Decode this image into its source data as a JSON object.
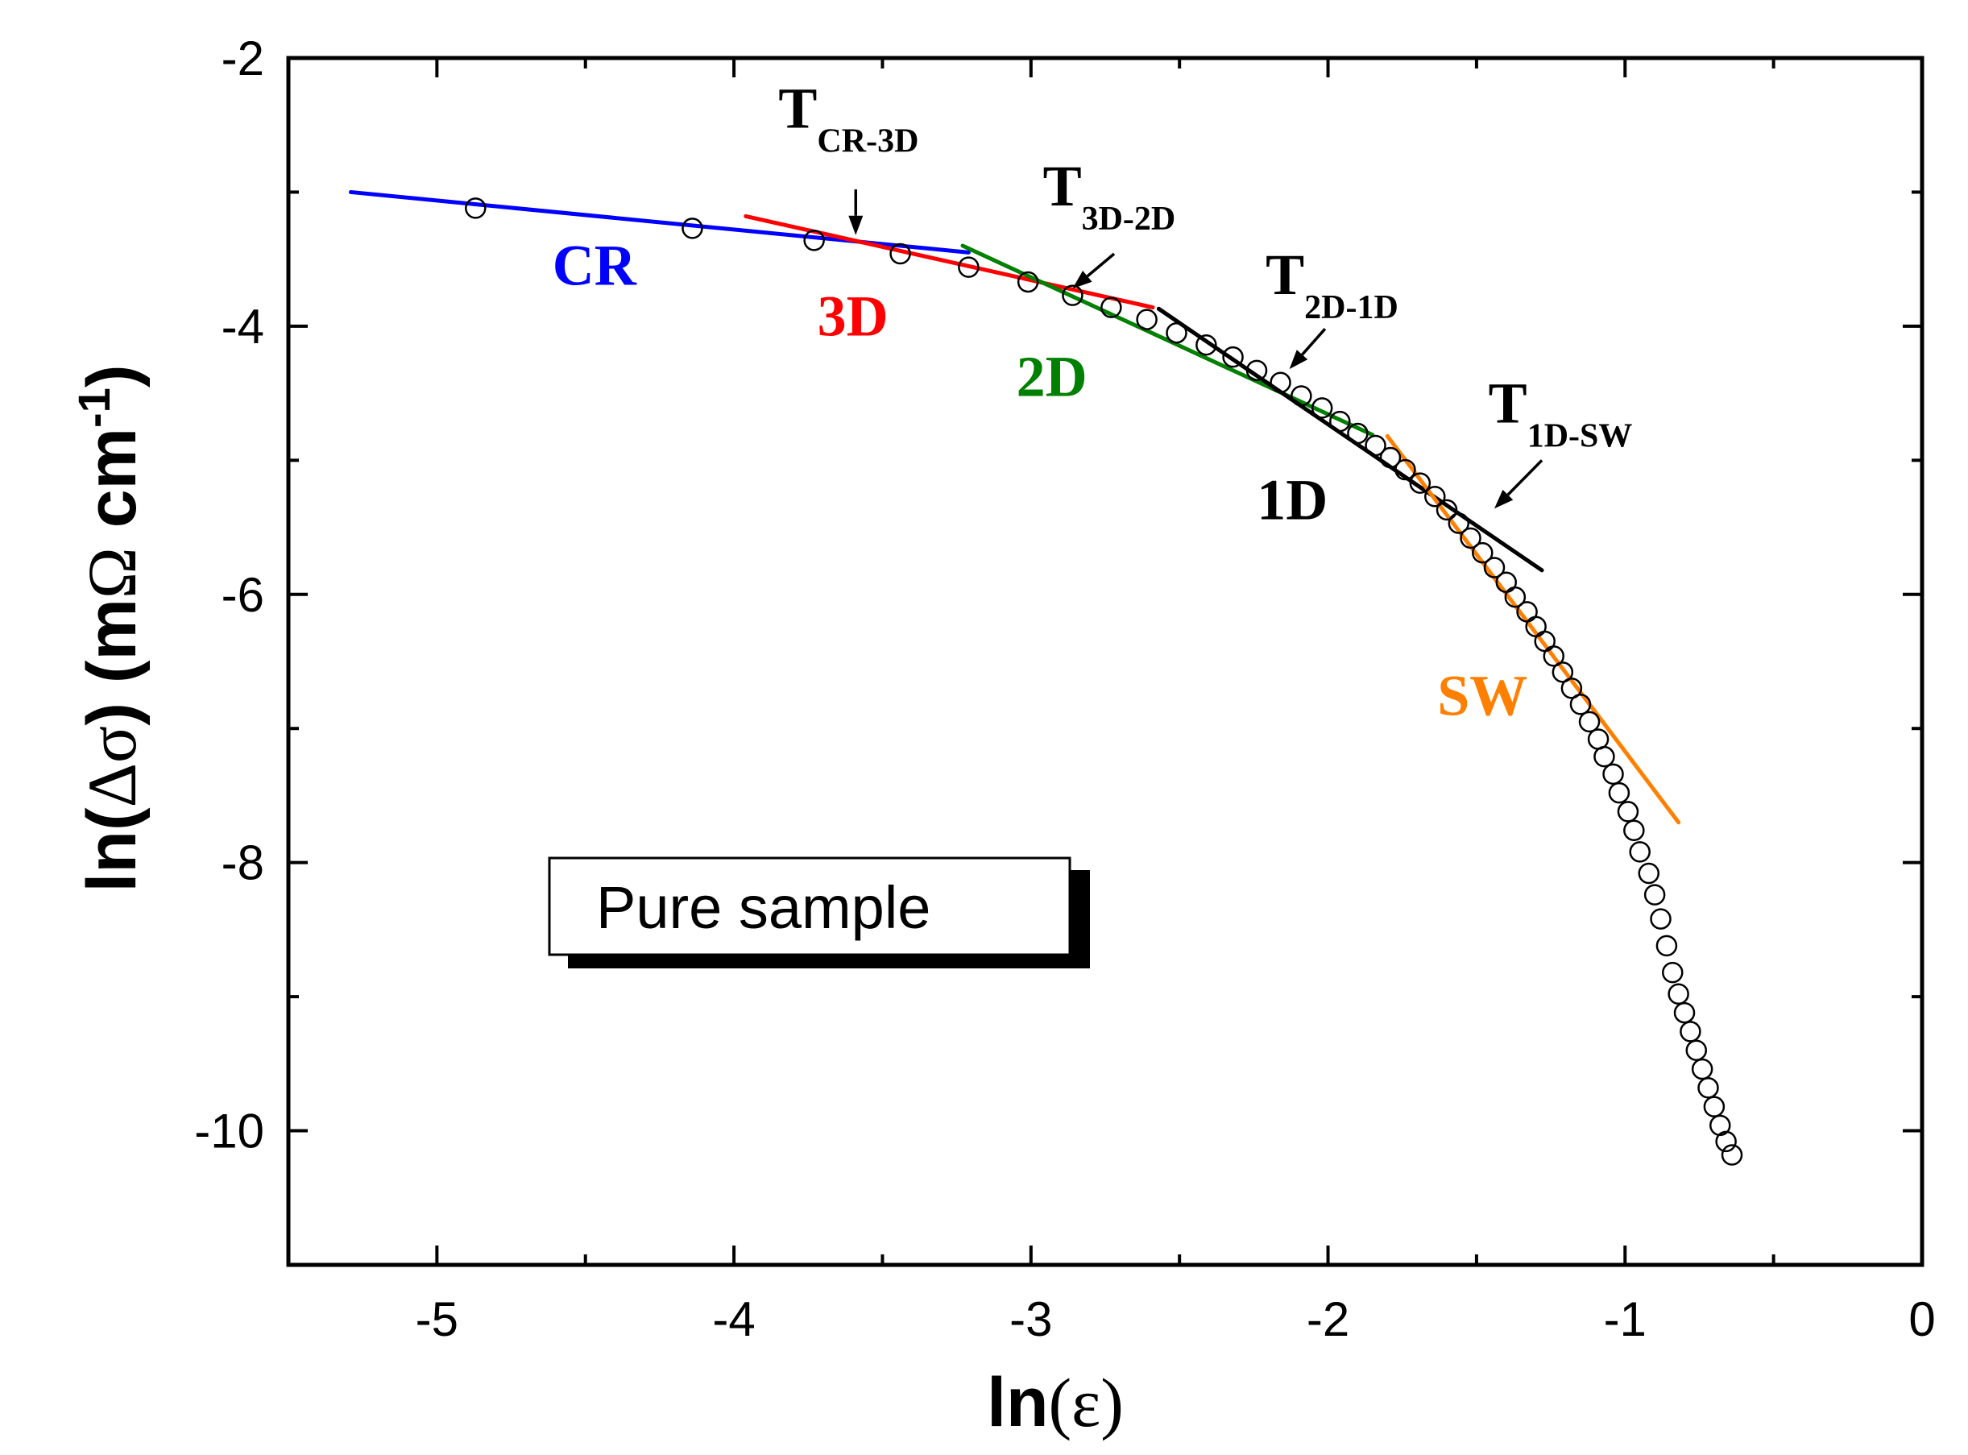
{
  "chart_data": {
    "type": "scatter",
    "title": "",
    "xlabel": {
      "prefix": "ln",
      "symbol": "(ε)"
    },
    "ylabel": {
      "prefix": "ln(",
      "symbol": "Δσ",
      "suffix": ")  (m",
      "omega": "Ω",
      "unit": " cm",
      "exp": "-1",
      "close": ")"
    },
    "xlim": [
      -5.5,
      0
    ],
    "ylim": [
      -11,
      -2
    ],
    "x_ticks": [
      -5,
      -4,
      -3,
      -2,
      -1,
      0
    ],
    "x_tick_labels": [
      "-5",
      "-4",
      "-3",
      "-2",
      "-1",
      "0"
    ],
    "y_ticks": [
      -2,
      -4,
      -6,
      -8,
      -10
    ],
    "y_tick_labels": [
      "-2",
      "-4",
      "-6",
      "-8",
      "-10"
    ],
    "x_minor_ticks": [
      -5.5,
      -4.5,
      -3.5,
      -2.5,
      -1.5,
      -0.5
    ],
    "y_minor_ticks": [
      -3,
      -5,
      -7,
      -9,
      -11
    ],
    "grid": false,
    "legend": {
      "text": "Pure sample",
      "position": "bottom-left",
      "marker": "open-circle"
    },
    "series": [
      {
        "name": "Pure sample",
        "marker": "open-circle",
        "points": [
          [
            -4.87,
            -3.12
          ],
          [
            -4.14,
            -3.27
          ],
          [
            -3.73,
            -3.36
          ],
          [
            -3.44,
            -3.46
          ],
          [
            -3.21,
            -3.56
          ],
          [
            -3.01,
            -3.67
          ],
          [
            -2.86,
            -3.77
          ],
          [
            -2.73,
            -3.86
          ],
          [
            -2.61,
            -3.95
          ],
          [
            -2.51,
            -4.05
          ],
          [
            -2.41,
            -4.14
          ],
          [
            -2.32,
            -4.23
          ],
          [
            -2.24,
            -4.33
          ],
          [
            -2.16,
            -4.42
          ],
          [
            -2.09,
            -4.52
          ],
          [
            -2.02,
            -4.61
          ],
          [
            -1.96,
            -4.71
          ],
          [
            -1.9,
            -4.8
          ],
          [
            -1.84,
            -4.89
          ],
          [
            -1.79,
            -4.98
          ],
          [
            -1.74,
            -5.07
          ],
          [
            -1.69,
            -5.17
          ],
          [
            -1.64,
            -5.27
          ],
          [
            -1.6,
            -5.37
          ],
          [
            -1.56,
            -5.47
          ],
          [
            -1.52,
            -5.58
          ],
          [
            -1.48,
            -5.69
          ],
          [
            -1.44,
            -5.8
          ],
          [
            -1.4,
            -5.91
          ],
          [
            -1.37,
            -6.02
          ],
          [
            -1.33,
            -6.13
          ],
          [
            -1.3,
            -6.24
          ],
          [
            -1.27,
            -6.35
          ],
          [
            -1.24,
            -6.46
          ],
          [
            -1.21,
            -6.58
          ],
          [
            -1.18,
            -6.7
          ],
          [
            -1.15,
            -6.82
          ],
          [
            -1.12,
            -6.95
          ],
          [
            -1.09,
            -7.08
          ],
          [
            -1.07,
            -7.21
          ],
          [
            -1.04,
            -7.34
          ],
          [
            -1.02,
            -7.48
          ],
          [
            -0.99,
            -7.62
          ],
          [
            -0.97,
            -7.76
          ],
          [
            -0.95,
            -7.92
          ],
          [
            -0.92,
            -8.08
          ],
          [
            -0.9,
            -8.24
          ],
          [
            -0.88,
            -8.42
          ],
          [
            -0.86,
            -8.62
          ],
          [
            -0.84,
            -8.82
          ],
          [
            -0.82,
            -8.98
          ],
          [
            -0.8,
            -9.12
          ],
          [
            -0.78,
            -9.26
          ],
          [
            -0.76,
            -9.4
          ],
          [
            -0.74,
            -9.54
          ],
          [
            -0.72,
            -9.68
          ],
          [
            -0.7,
            -9.82
          ],
          [
            -0.68,
            -9.96
          ],
          [
            -0.66,
            -10.08
          ],
          [
            -0.64,
            -10.18
          ]
        ]
      }
    ],
    "fits": [
      {
        "name": "CR",
        "color": "#0000ff",
        "x": [
          -5.29,
          -3.21
        ],
        "y": [
          -3.0,
          -3.45
        ]
      },
      {
        "name": "3D",
        "color": "#ff0000",
        "x": [
          -3.96,
          -2.59
        ],
        "y": [
          -3.18,
          -3.86
        ]
      },
      {
        "name": "2D",
        "color": "#008000",
        "x": [
          -3.23,
          -1.85
        ],
        "y": [
          -3.4,
          -4.81
        ]
      },
      {
        "name": "1D",
        "color": "#000000",
        "x": [
          -2.57,
          -1.28
        ],
        "y": [
          -3.87,
          -5.82
        ]
      },
      {
        "name": "SW",
        "color": "#ff8000",
        "x": [
          -1.8,
          -0.82
        ],
        "y": [
          -4.82,
          -7.7
        ]
      }
    ],
    "region_labels": [
      {
        "text": "CR",
        "color": "#0000ff",
        "x": -4.47,
        "y": -3.69
      },
      {
        "text": "3D",
        "color": "#ff0000",
        "x": -3.6,
        "y": -4.07
      },
      {
        "text": "2D",
        "color": "#008000",
        "x": -2.93,
        "y": -4.52
      },
      {
        "text": "1D",
        "color": "#000000",
        "x": -2.12,
        "y": -5.44
      },
      {
        "text": "SW",
        "color": "#ff8000",
        "x": -1.48,
        "y": -6.9
      }
    ],
    "annotations": [
      {
        "main": "T",
        "sub": "CR-3D",
        "text_x": -3.85,
        "text_y": -2.52,
        "arrow_from": [
          -3.59,
          -2.98
        ],
        "arrow_to": [
          -3.59,
          -3.32
        ]
      },
      {
        "main": "T",
        "sub": "3D-2D",
        "text_x": -2.96,
        "text_y": -3.1,
        "arrow_from": [
          -2.72,
          -3.46
        ],
        "arrow_to": [
          -2.86,
          -3.72
        ]
      },
      {
        "main": "T",
        "sub": "2D-1D",
        "text_x": -2.21,
        "text_y": -3.76,
        "arrow_from": [
          -2.01,
          -4.02
        ],
        "arrow_to": [
          -2.13,
          -4.32
        ]
      },
      {
        "main": "T",
        "sub": "1D-SW",
        "text_x": -1.46,
        "text_y": -4.72,
        "arrow_from": [
          -1.28,
          -5.0
        ],
        "arrow_to": [
          -1.44,
          -5.36
        ]
      }
    ]
  }
}
